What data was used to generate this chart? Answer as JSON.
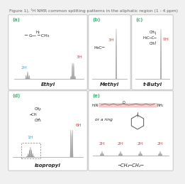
{
  "title": "Figure 1). ¹H NMR common splitting patterns in the aliphatic region (1 - 4 ppm)",
  "title_color": "#666666",
  "title_fontsize": 4.3,
  "red_color": "#d94040",
  "cyan_color": "#40a8c8",
  "green_color": "#3dba7c",
  "black_color": "#222222",
  "bg_color": "#f0f0f0",
  "box_edge_color": "#aaaaaa",
  "dashed_box_color": "#888888",
  "peak_color": "#aaaaaa",
  "peak_edge": "#888888"
}
